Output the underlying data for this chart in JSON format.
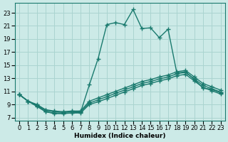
{
  "bg_color": "#cceae7",
  "grid_color": "#aad4d0",
  "line_color": "#1a7a6e",
  "line_width": 1.0,
  "marker": "+",
  "marker_size": 4,
  "marker_edge_width": 1.0,
  "xlabel": "Humidex (Indice chaleur)",
  "xlim": [
    -0.5,
    23.5
  ],
  "ylim": [
    6.5,
    24.5
  ],
  "xticks": [
    0,
    1,
    2,
    3,
    4,
    5,
    6,
    7,
    8,
    9,
    10,
    11,
    12,
    13,
    14,
    15,
    16,
    17,
    18,
    19,
    20,
    21,
    22,
    23
  ],
  "yticks": [
    7,
    9,
    11,
    13,
    15,
    17,
    19,
    21,
    23
  ],
  "series": [
    {
      "x": [
        0,
        1,
        2,
        3,
        4,
        5,
        6,
        7,
        8,
        9,
        10,
        11,
        12,
        13,
        14,
        15,
        16,
        17,
        18,
        19,
        20,
        21,
        22,
        23
      ],
      "y": [
        10.5,
        9.5,
        8.8,
        7.9,
        7.6,
        7.6,
        7.7,
        7.8,
        12.0,
        16.0,
        21.2,
        21.5,
        21.2,
        23.5,
        20.6,
        20.7,
        19.2,
        20.5,
        13.8,
        14.0,
        12.8,
        11.5,
        11.3,
        10.8
      ]
    },
    {
      "x": [
        0,
        1,
        2,
        3,
        4,
        5,
        6,
        7,
        8,
        9,
        10,
        11,
        12,
        13,
        14,
        15,
        16,
        17,
        18,
        19,
        20,
        21,
        22,
        23
      ],
      "y": [
        10.5,
        9.5,
        9.0,
        8.2,
        8.0,
        7.9,
        8.0,
        8.0,
        9.5,
        10.0,
        10.5,
        11.0,
        11.5,
        12.0,
        12.5,
        12.8,
        13.2,
        13.5,
        14.0,
        14.2,
        13.2,
        12.2,
        11.7,
        11.2
      ]
    },
    {
      "x": [
        0,
        1,
        2,
        3,
        4,
        5,
        6,
        7,
        8,
        9,
        10,
        11,
        12,
        13,
        14,
        15,
        16,
        17,
        18,
        19,
        20,
        21,
        22,
        23
      ],
      "y": [
        10.5,
        9.5,
        8.9,
        8.1,
        7.9,
        7.8,
        7.9,
        7.9,
        9.2,
        9.7,
        10.2,
        10.7,
        11.2,
        11.7,
        12.2,
        12.5,
        12.9,
        13.2,
        13.7,
        13.9,
        12.9,
        11.9,
        11.4,
        10.9
      ]
    },
    {
      "x": [
        0,
        1,
        2,
        3,
        4,
        5,
        6,
        7,
        8,
        9,
        10,
        11,
        12,
        13,
        14,
        15,
        16,
        17,
        18,
        19,
        20,
        21,
        22,
        23
      ],
      "y": [
        10.5,
        9.5,
        8.7,
        7.9,
        7.7,
        7.7,
        7.7,
        7.7,
        9.0,
        9.4,
        9.9,
        10.4,
        10.9,
        11.4,
        11.9,
        12.2,
        12.6,
        12.9,
        13.4,
        13.6,
        12.6,
        11.6,
        11.1,
        10.6
      ]
    }
  ]
}
